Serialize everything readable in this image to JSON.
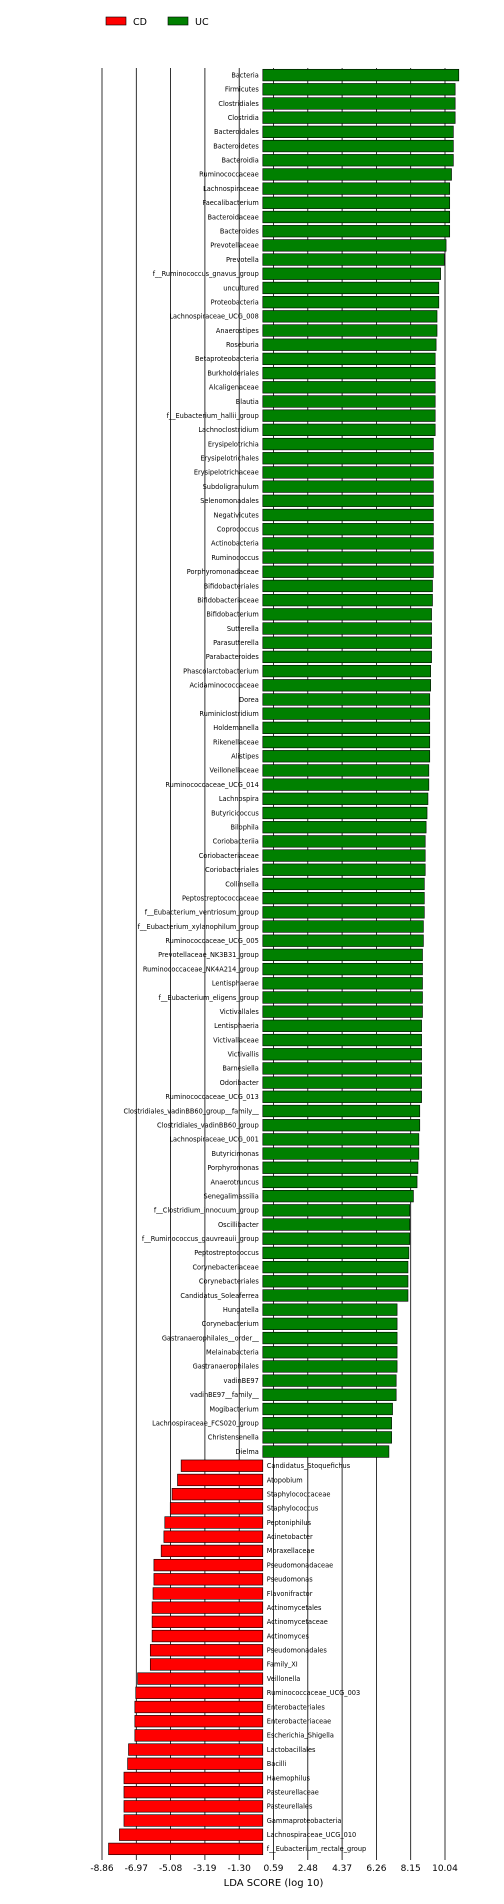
{
  "chart_data": {
    "type": "bar",
    "orientation": "horizontal",
    "title": "",
    "xlabel": "LDA SCORE (log 10)",
    "ylabel": "",
    "xlim": [
      -9.5,
      10.5
    ],
    "xticks": [
      -8.86,
      -6.97,
      -5.08,
      -3.19,
      -1.3,
      0.59,
      2.48,
      4.37,
      6.26,
      8.15,
      10.04
    ],
    "xtick_labels": [
      "-8.86",
      "-6.97",
      "-5.08",
      "-3.19",
      "-1.30",
      "0.59",
      "2.48",
      "4.37",
      "6.26",
      "8.15",
      "10.04"
    ],
    "grid": "vertical lines at ticks",
    "legend_position": "top-left",
    "colors": {
      "CD": "#ff0000",
      "UC": "#008000"
    },
    "series": [
      {
        "name": "UC",
        "color": "#008000",
        "categories": [
          "Bacteria",
          "Firmicutes",
          "Clostridiales",
          "Clostridia",
          "Bacteroidales",
          "Bacteroidetes",
          "Bacteroidia",
          "Ruminococcaceae",
          "Lachnospiraceae",
          "Faecalibacterium",
          "Bacteroidaceae",
          "Bacteroides",
          "Prevotellaceae",
          "Prevotella",
          "f__Ruminococcus_gnavus_group",
          "uncultured",
          "Proteobacteria",
          "Lachnospiraceae_UCG_008",
          "Anaerostipes",
          "Roseburia",
          "Betaproteobacteria",
          "Burkholderiales",
          "Alcaligenaceae",
          "Blautia",
          "f__Eubacterium_hallii_group",
          "Lachnoclostridium",
          "Erysipelotrichia",
          "Erysipelotrichales",
          "Erysipelotrichaceae",
          "Subdoligranulum",
          "Selenomonadales",
          "Negativicutes",
          "Coprococcus",
          "Actinobacteria",
          "Ruminococcus",
          "Porphyromonadaceae",
          "Bifidobacteriales",
          "Bifidobacteriaceae",
          "Bifidobacterium",
          "Sutterella",
          "Parasutterella",
          "Parabacteroides",
          "Phascolarctobacterium",
          "Acidaminococcaceae",
          "Dorea",
          "Ruminiclostridium",
          "Holdemanella",
          "Rikenellaceae",
          "Alistipes",
          "Veillonellaceae",
          "Ruminococcaceae_UCG_014",
          "Lachnospira",
          "Butyricicoccus",
          "Bilophila",
          "Coriobacteriia",
          "Coriobacteriaceae",
          "Coriobacteriales",
          "Collinsella",
          "Peptostreptococcaceae",
          "f__Eubacterium_ventriosum_group",
          "f__Eubacterium_xylanophilum_group",
          "Ruminococcaceae_UCG_005",
          "Prevotellaceae_NK3B31_group",
          "Ruminococcaceae_NK4A214_group",
          "Lentisphaerae",
          "f__Eubacterium_eligens_group",
          "Victivallales",
          "Lentisphaeria",
          "Victivallaceae",
          "Victivallis",
          "Barnesiella",
          "Odoribacter",
          "Ruminococcaceae_UCG_013",
          "Clostridiales_vadinBB60_group__family__",
          "Clostridiales_vadinBB60_group",
          "Lachnospiraceae_UCG_001",
          "Butyricimonas",
          "Porphyromonas",
          "Anaerotruncus",
          "Senegalimassilia",
          "f__Clostridium_innocuum_group",
          "Oscillibacter",
          "f__Ruminococcus_gauvreauii_group",
          "Peptostreptococcus",
          "Corynebacteriaceae",
          "Corynebacteriales",
          "Candidatus_Soleaferrea",
          "Hungatella",
          "Corynebacterium",
          "Gastranaerophilales__order__",
          "Melainabacteria",
          "Gastranaerophilales",
          "vadinBE97",
          "vadinBE97__family__",
          "Mogibacterium",
          "Lachnospiraceae_FCS020_group",
          "Christensenella",
          "Dielma"
        ],
        "values": [
          10.8,
          10.6,
          10.6,
          10.6,
          10.5,
          10.5,
          10.5,
          10.4,
          10.3,
          10.3,
          10.3,
          10.3,
          10.1,
          10.0,
          9.8,
          9.7,
          9.7,
          9.6,
          9.6,
          9.55,
          9.5,
          9.5,
          9.5,
          9.5,
          9.5,
          9.5,
          9.4,
          9.4,
          9.4,
          9.4,
          9.4,
          9.4,
          9.4,
          9.4,
          9.4,
          9.4,
          9.35,
          9.35,
          9.3,
          9.3,
          9.3,
          9.3,
          9.25,
          9.25,
          9.2,
          9.2,
          9.2,
          9.2,
          9.2,
          9.15,
          9.15,
          9.1,
          9.05,
          9.0,
          8.95,
          8.95,
          8.95,
          8.9,
          8.9,
          8.9,
          8.85,
          8.85,
          8.8,
          8.8,
          8.8,
          8.8,
          8.8,
          8.75,
          8.75,
          8.75,
          8.75,
          8.75,
          8.75,
          8.65,
          8.65,
          8.6,
          8.6,
          8.55,
          8.5,
          8.3,
          8.1,
          8.1,
          8.1,
          8.05,
          8.0,
          8.0,
          8.0,
          7.4,
          7.4,
          7.4,
          7.4,
          7.4,
          7.35,
          7.35,
          7.15,
          7.1,
          7.1,
          6.95
        ]
      },
      {
        "name": "CD",
        "color": "#ff0000",
        "categories": [
          "Candidatus_Stoquefichus",
          "Atopobium",
          "Staphylococcaceae",
          "Staphylococcus",
          "Peptoniphilus",
          "Acinetobacter",
          "Moraxellaceae",
          "Pseudomonadaceae",
          "Pseudomonas",
          "Flavonifractor",
          "Actinomycetales",
          "Actinomycetaceae",
          "Actinomyces",
          "Pseudomonadales",
          "Family_XI",
          "Veillonella",
          "Ruminococcaceae_UCG_003",
          "Enterobacteriales",
          "Enterobacteriaceae",
          "Escherichia_Shigella",
          "Lactobacillales",
          "Bacilli",
          "Haemophilus",
          "Pasteurellaceae",
          "Pasteurellales",
          "Gammaproteobacteria",
          "Lachnospiraceae_UCG_010",
          "f__Eubacterium_rectale_group"
        ],
        "values": [
          -4.5,
          -4.7,
          -5.0,
          -5.1,
          -5.4,
          -5.45,
          -5.6,
          -6.0,
          -6.0,
          -6.05,
          -6.1,
          -6.1,
          -6.1,
          -6.2,
          -6.2,
          -6.9,
          -7.0,
          -7.05,
          -7.05,
          -7.05,
          -7.4,
          -7.45,
          -7.65,
          -7.65,
          -7.65,
          -7.65,
          -7.9,
          -8.5
        ]
      }
    ]
  }
}
